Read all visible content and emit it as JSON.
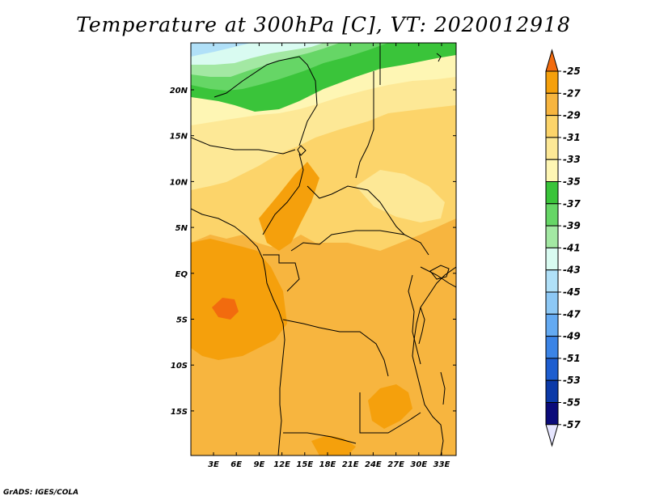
{
  "title": "Temperature at 300hPa [C], VT: 2020012918",
  "footer": "GrADS: IGES/COLA",
  "lat_labels": [
    "20N",
    "15N",
    "10N",
    "5N",
    "EQ",
    "5S",
    "10S",
    "15S"
  ],
  "lon_labels": [
    "3E",
    "6E",
    "9E",
    "12E",
    "15E",
    "18E",
    "21E",
    "24E",
    "27E",
    "30E",
    "33E"
  ],
  "colorbar": {
    "labels": [
      "-25",
      "-27",
      "-29",
      "-31",
      "-33",
      "-35",
      "-37",
      "-39",
      "-41",
      "-43",
      "-45",
      "-47",
      "-49",
      "-51",
      "-53",
      "-55",
      "-57"
    ],
    "colors": [
      "#f26b0e",
      "#f5a00c",
      "#f7b53f",
      "#fcd46a",
      "#fde896",
      "#fef6b4",
      "#3ac43a",
      "#66d666",
      "#a3e8a3",
      "#d9fbf1",
      "#b0e0f8",
      "#8dc8f5",
      "#64aaf2",
      "#3b84e6",
      "#1e5ed0",
      "#0c3aa8",
      "#0b0b7a",
      "#e6e6ff"
    ]
  }
}
